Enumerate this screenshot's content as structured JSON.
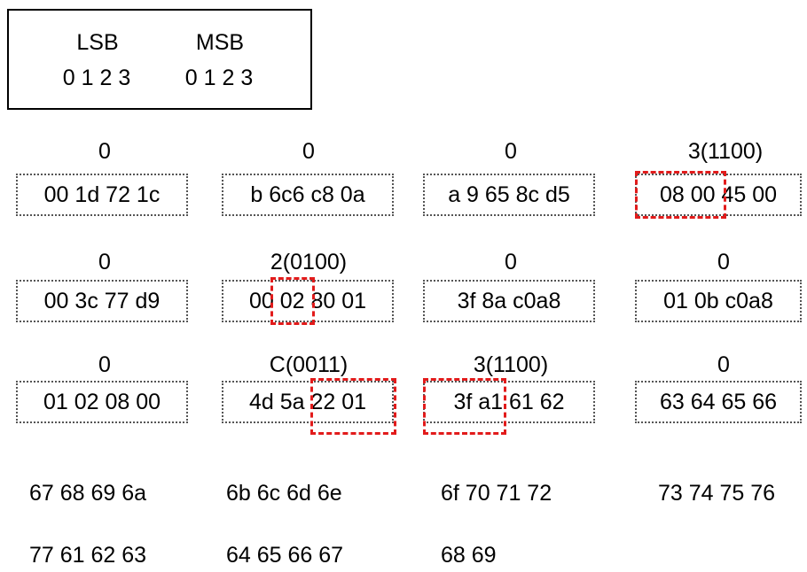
{
  "legend": {
    "lsb_label": "LSB",
    "msb_label": "MSB",
    "lsb_bits": "0 1 2 3",
    "msb_bits": "0 1 2 3"
  },
  "rows": [
    {
      "labels": [
        "0",
        "0",
        "0",
        "3(1100)"
      ],
      "cells": [
        "00 1d 72 1c",
        "b 6c6 c8 0a",
        "a 9 65 8c d5",
        "08 00 45 00"
      ]
    },
    {
      "labels": [
        "0",
        "2(0100)",
        "0",
        "0"
      ],
      "cells": [
        "00 3c 77 d9",
        "00 02 80 01",
        "3f 8a c0a8",
        "01 0b c0a8"
      ]
    },
    {
      "labels": [
        "0",
        "C(0011)",
        "3(1100)",
        "0"
      ],
      "cells": [
        "01 02 08 00",
        "4d 5a 22 01",
        "3f a1 61 62",
        "63 64 65 66"
      ]
    }
  ],
  "plain_rows": [
    [
      "67 68 69 6a",
      "6b 6c 6d 6e",
      "6f 70 71 72",
      "73 74 75 76"
    ],
    [
      "77 61 62 63",
      "64 65 66 67",
      "68 69"
    ]
  ],
  "colors": {
    "highlight": "#e21b1b",
    "dotted_border": "#555555"
  }
}
